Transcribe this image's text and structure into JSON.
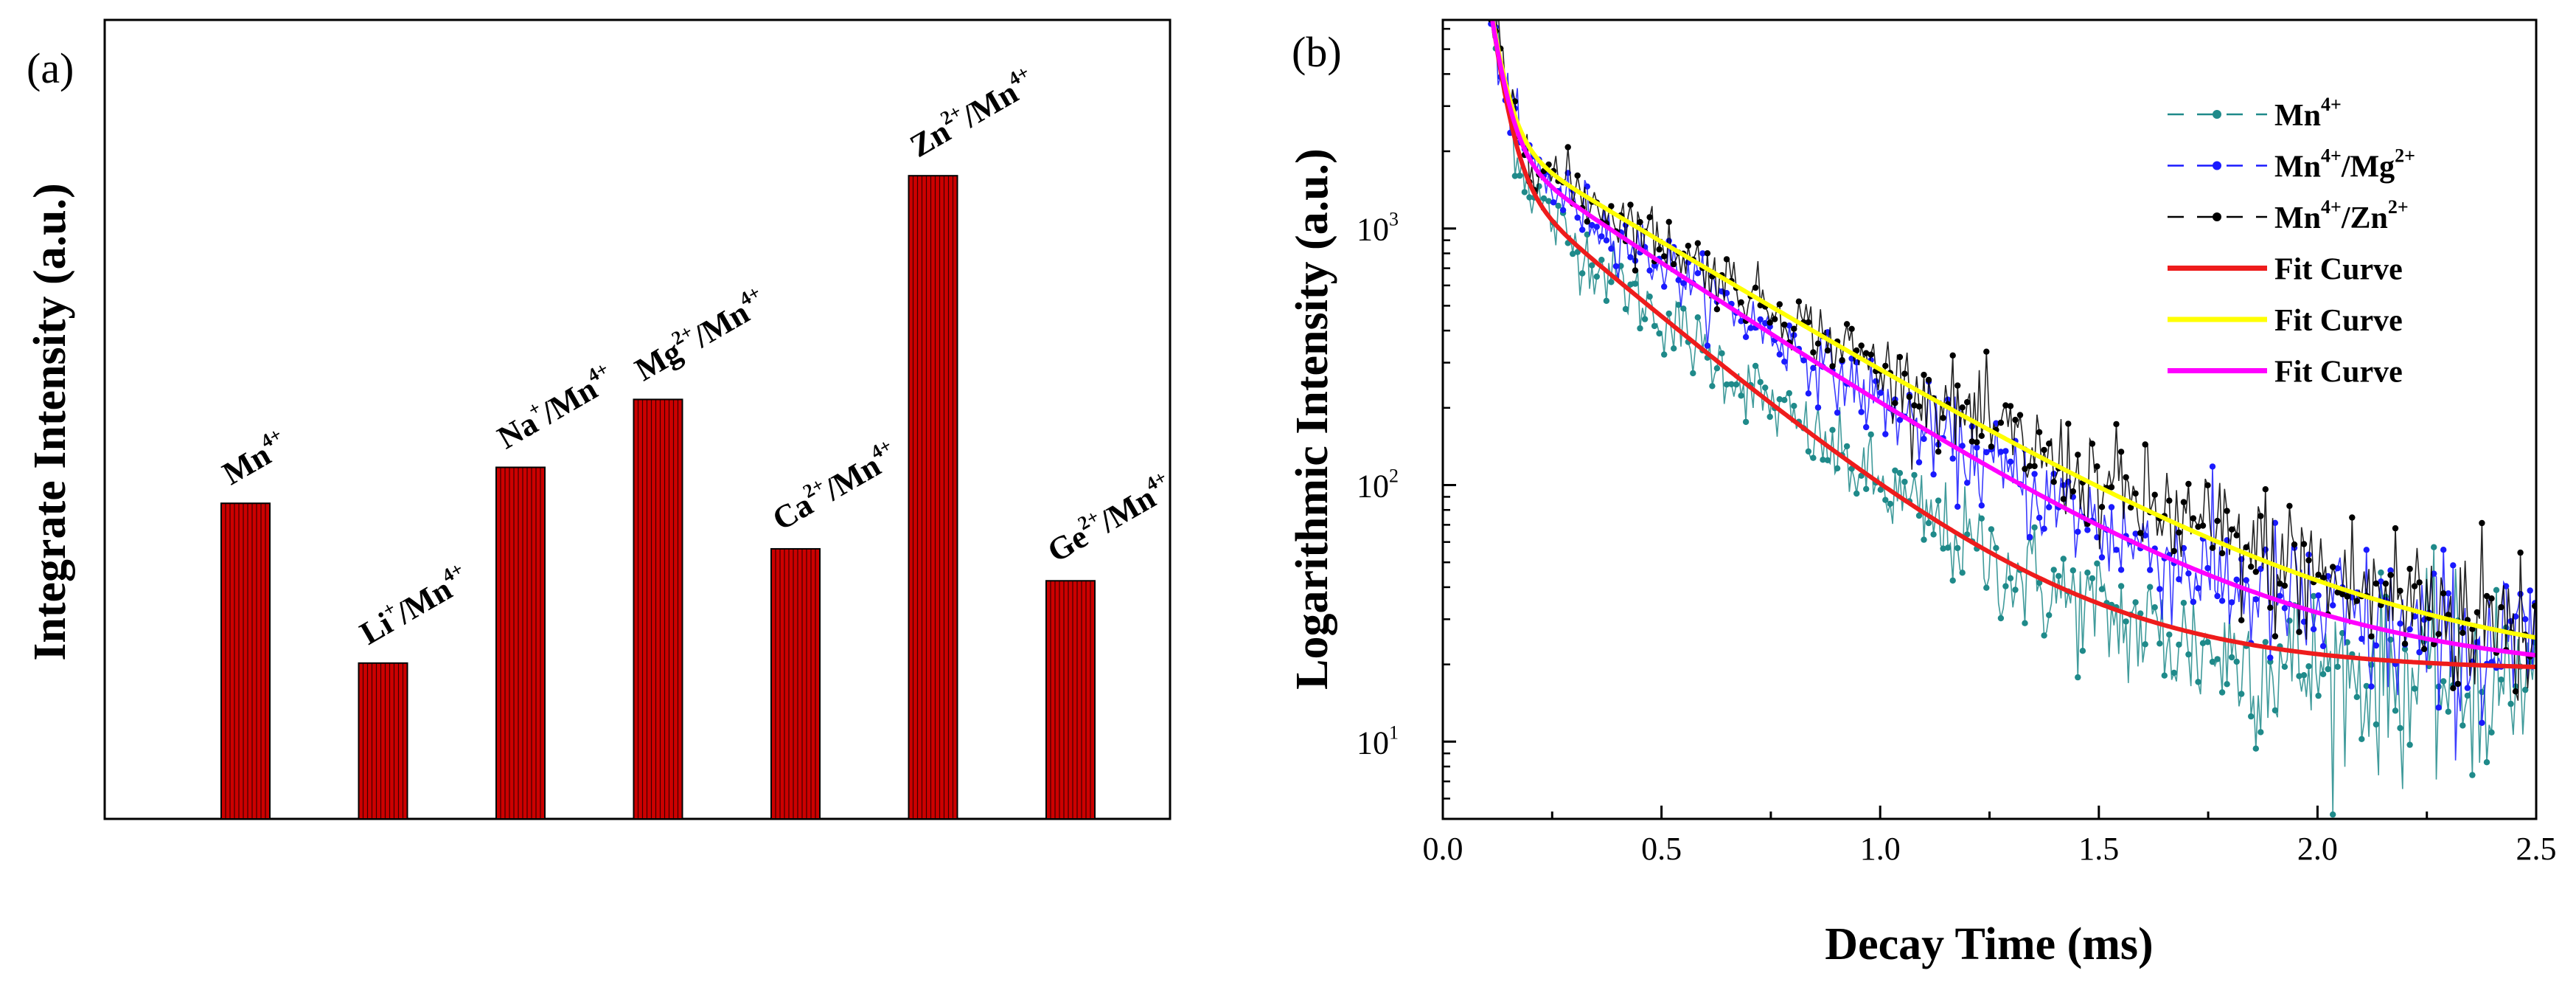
{
  "chart_data": [
    {
      "type": "bar",
      "panel_label": "(a)",
      "title": "",
      "xlabel": "",
      "ylabel": "Integrate Intensity (a.u.)",
      "ylim": [
        0,
        1
      ],
      "y_ticks_shown": false,
      "categories": [
        {
          "base": "Mn",
          "sup": "4+",
          "tail": "",
          "tail_sup": ""
        },
        {
          "base": "Li",
          "sup": "+",
          "tail": "/Mn",
          "tail_sup": "4+"
        },
        {
          "base": "Na",
          "sup": "+",
          "tail": "/Mn",
          "tail_sup": "4+"
        },
        {
          "base": "Mg",
          "sup": "2+",
          "tail": "/Mn",
          "tail_sup": "4+"
        },
        {
          "base": "Ca",
          "sup": "2+",
          "tail": "/Mn",
          "tail_sup": "4+"
        },
        {
          "base": "Zn",
          "sup": "2+",
          "tail": "/Mn",
          "tail_sup": "4+"
        },
        {
          "base": "Ge",
          "sup": "2+",
          "tail": "/Mn",
          "tail_sup": "4+"
        }
      ],
      "values": [
        0.395,
        0.195,
        0.44,
        0.525,
        0.338,
        0.805,
        0.298
      ],
      "bar_color": "#cc0000"
    },
    {
      "type": "line",
      "panel_label": "(b)",
      "title": "",
      "xlabel": "Decay Time (ms)",
      "ylabel": "Logarithmic Intensity (a.u.)",
      "xlim": [
        0,
        2.5
      ],
      "ylim": [
        5,
        6500
      ],
      "yscale": "log",
      "x_ticks": [
        "0.0",
        "0.5",
        "1.0",
        "1.5",
        "2.0",
        "2.5"
      ],
      "y_ticks": [
        {
          "base": "10",
          "exp": "1",
          "value": 10
        },
        {
          "base": "10",
          "exp": "2",
          "value": 100
        },
        {
          "base": "10",
          "exp": "3",
          "value": 1000
        }
      ],
      "legend_position": "top-right",
      "series": [
        {
          "name": "Mn",
          "sup": "4+",
          "tail": "",
          "tail_sup": "",
          "kind": "measured",
          "color": "#1f8a8a",
          "model": {
            "a1": 5500,
            "t1": 0.03,
            "a2": 1600,
            "t2": 0.3,
            "offset": 16,
            "noise": 0.16
          }
        },
        {
          "name": "Mn",
          "sup": "4+",
          "tail": "/Mg",
          "tail_sup": "2+",
          "kind": "measured",
          "color": "#1a1aff",
          "model": {
            "a1": 5000,
            "t1": 0.03,
            "a2": 2000,
            "t2": 0.38,
            "offset": 18,
            "noise": 0.14
          }
        },
        {
          "name": "Mn",
          "sup": "4+",
          "tail": "/Zn",
          "tail_sup": "2+",
          "kind": "measured",
          "color": "#000000",
          "model": {
            "a1": 5000,
            "t1": 0.03,
            "a2": 2200,
            "t2": 0.42,
            "offset": 20,
            "noise": 0.14
          }
        },
        {
          "name": "Fit Curve",
          "kind": "fit",
          "color": "#ee1c1c",
          "model": {
            "a1": 5500,
            "t1": 0.03,
            "a2": 1600,
            "t2": 0.3,
            "offset": 19
          }
        },
        {
          "name": "Fit Curve",
          "kind": "fit",
          "color": "#ffff00",
          "model": {
            "a1": 5000,
            "t1": 0.03,
            "a2": 2200,
            "t2": 0.42,
            "offset": 18
          }
        },
        {
          "name": "Fit Curve",
          "kind": "fit",
          "color": "#ff00ff",
          "model": {
            "a1": 5000,
            "t1": 0.03,
            "a2": 2000,
            "t2": 0.38,
            "offset": 18
          }
        }
      ],
      "x_start": 0.11
    }
  ]
}
